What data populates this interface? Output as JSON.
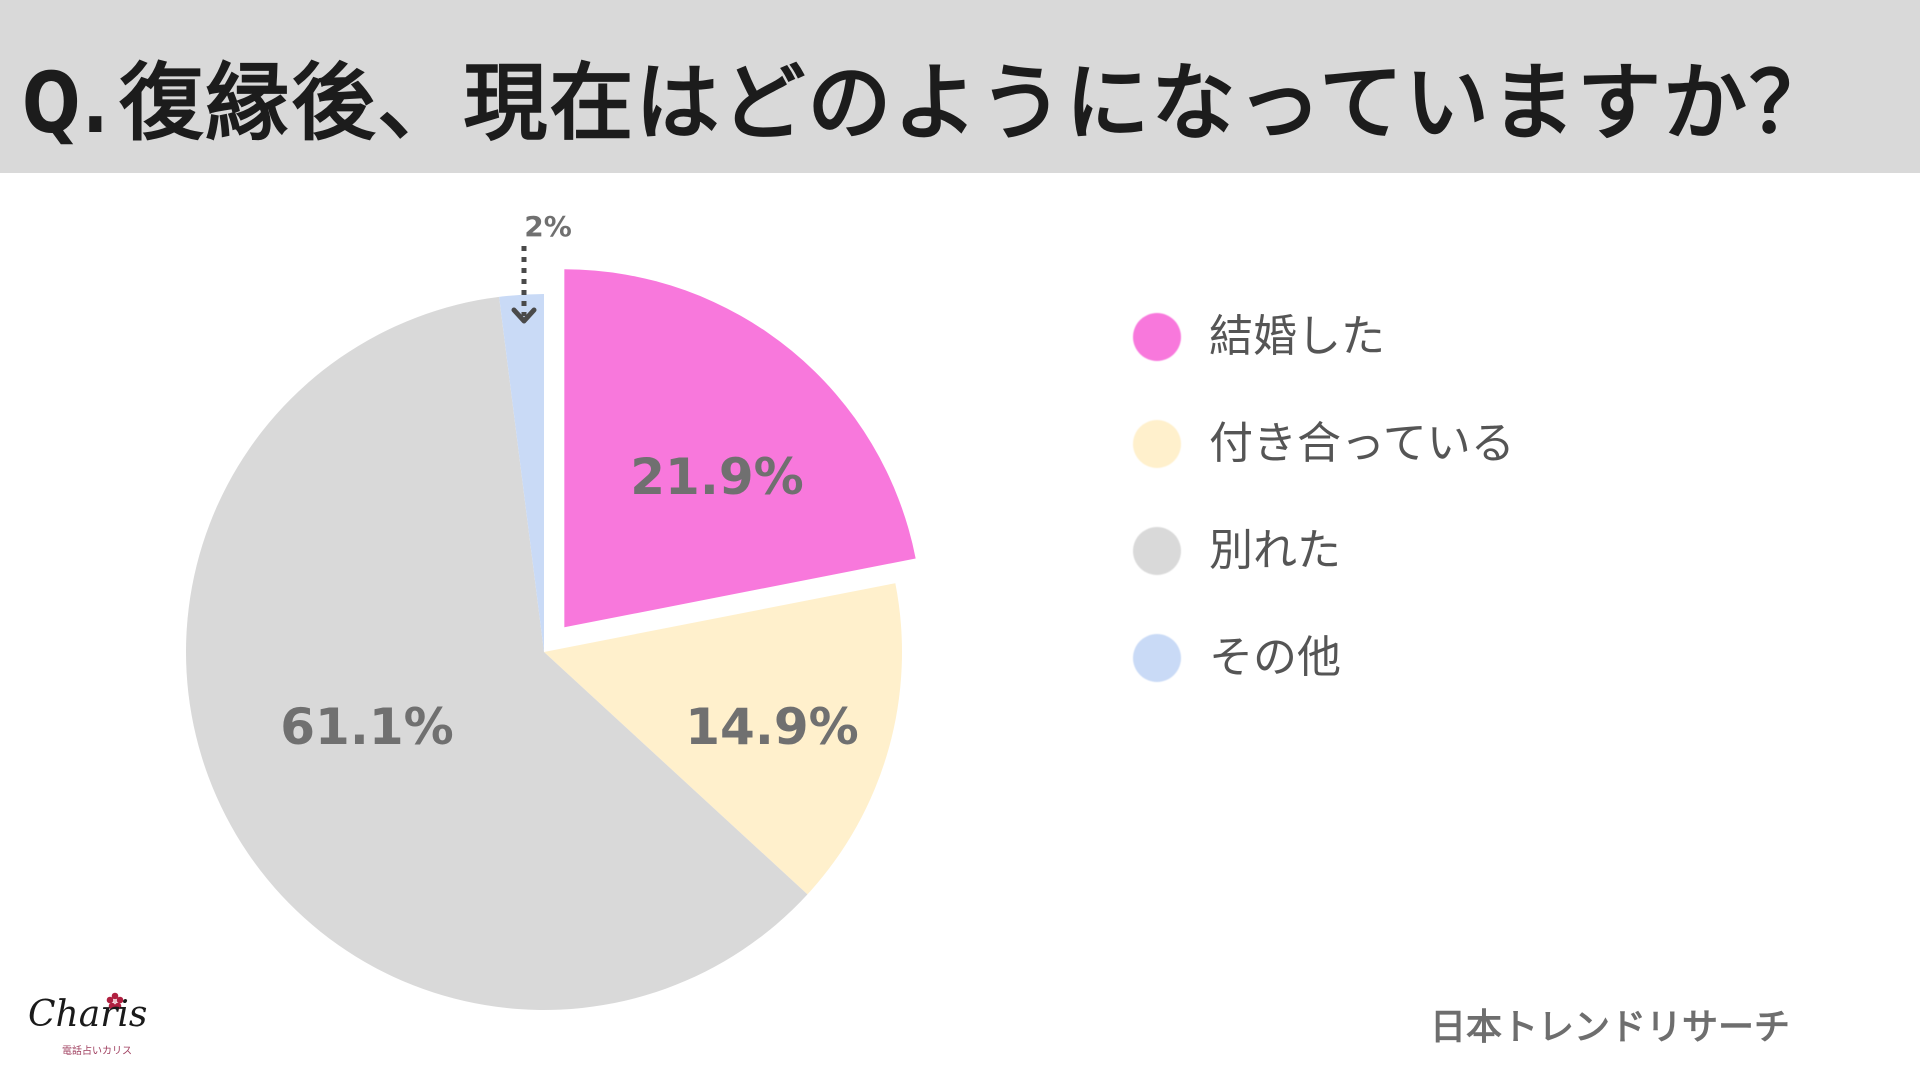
{
  "header": {
    "title_prefix": "Q.",
    "title": "復縁後、現在はどのようになっていますか？"
  },
  "chart_data": {
    "type": "pie",
    "title": "Q.復縁後、現在はどのようになっていますか？",
    "start_angle": "12 o'clock, clockwise",
    "categories": [
      "結婚した",
      "付き合っている",
      "別れた",
      "その他"
    ],
    "values": [
      21.9,
      14.9,
      61.1,
      2.0
    ],
    "labels": [
      "21.9%",
      "14.9%",
      "61.1%",
      "2%"
    ],
    "colors": [
      "#f878dc",
      "#fff0cc",
      "#d9d9d9",
      "#c9daf6"
    ],
    "exploded": [
      "結婚した"
    ],
    "legend_position": "right",
    "annotations": [
      {
        "text": "2%",
        "target": "その他",
        "style": "dotted arrow pointing down"
      }
    ]
  },
  "legend": {
    "items": [
      {
        "label": "結婚した",
        "color": "#f878dc"
      },
      {
        "label": "付き合っている",
        "color": "#fff0cc"
      },
      {
        "label": "別れた",
        "color": "#d9d9d9"
      },
      {
        "label": "その他",
        "color": "#c9daf6"
      }
    ]
  },
  "callout": {
    "label": "2%"
  },
  "footer": {
    "logo_name": "Charis",
    "logo_sub": "電話占いカリス",
    "source": "日本トレンドリサーチ"
  },
  "colors": {
    "header_bg": "#d9d9d9",
    "title_text": "#1c1c1c",
    "label_text": "#707070",
    "legend_text": "#555555"
  }
}
